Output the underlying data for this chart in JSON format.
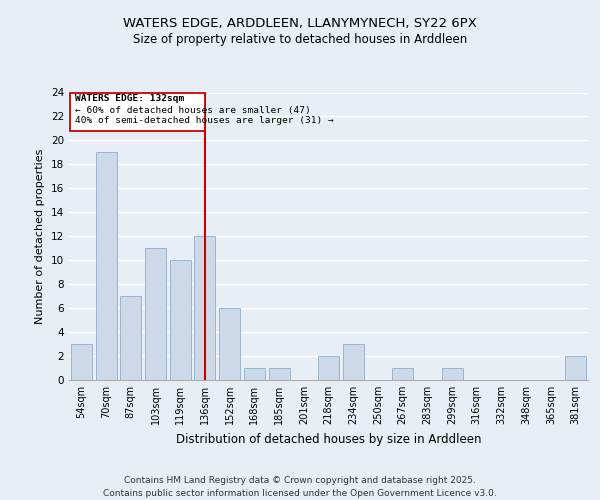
{
  "title_line1": "WATERS EDGE, ARDDLEEN, LLANYMYNECH, SY22 6PX",
  "title_line2": "Size of property relative to detached houses in Arddleen",
  "xlabel": "Distribution of detached houses by size in Arddleen",
  "ylabel": "Number of detached properties",
  "categories": [
    "54sqm",
    "70sqm",
    "87sqm",
    "103sqm",
    "119sqm",
    "136sqm",
    "152sqm",
    "168sqm",
    "185sqm",
    "201sqm",
    "218sqm",
    "234sqm",
    "250sqm",
    "267sqm",
    "283sqm",
    "299sqm",
    "316sqm",
    "332sqm",
    "348sqm",
    "365sqm",
    "381sqm"
  ],
  "values": [
    3,
    19,
    7,
    11,
    10,
    12,
    6,
    1,
    1,
    0,
    2,
    3,
    0,
    1,
    0,
    1,
    0,
    0,
    0,
    0,
    2
  ],
  "bar_color": "#ccd9e8",
  "bar_edge_color": "#92adc8",
  "vline_x_idx": 5,
  "vline_color": "#cc0000",
  "annotation_box_color": "#cc0000",
  "annotation_title": "WATERS EDGE: 132sqm",
  "annotation_line1": "← 60% of detached houses are smaller (47)",
  "annotation_line2": "40% of semi-detached houses are larger (31) →",
  "ylim": [
    0,
    24
  ],
  "yticks": [
    0,
    2,
    4,
    6,
    8,
    10,
    12,
    14,
    16,
    18,
    20,
    22,
    24
  ],
  "footer_line1": "Contains HM Land Registry data © Crown copyright and database right 2025.",
  "footer_line2": "Contains public sector information licensed under the Open Government Licence v3.0.",
  "bg_color": "#e8eef5",
  "plot_bg_color": "#e8eef5",
  "grid_color": "#ffffff",
  "title_fontsize": 9.5,
  "subtitle_fontsize": 8.5,
  "ylabel_fontsize": 8,
  "xlabel_fontsize": 8.5,
  "tick_fontsize": 7,
  "footer_fontsize": 6.5
}
